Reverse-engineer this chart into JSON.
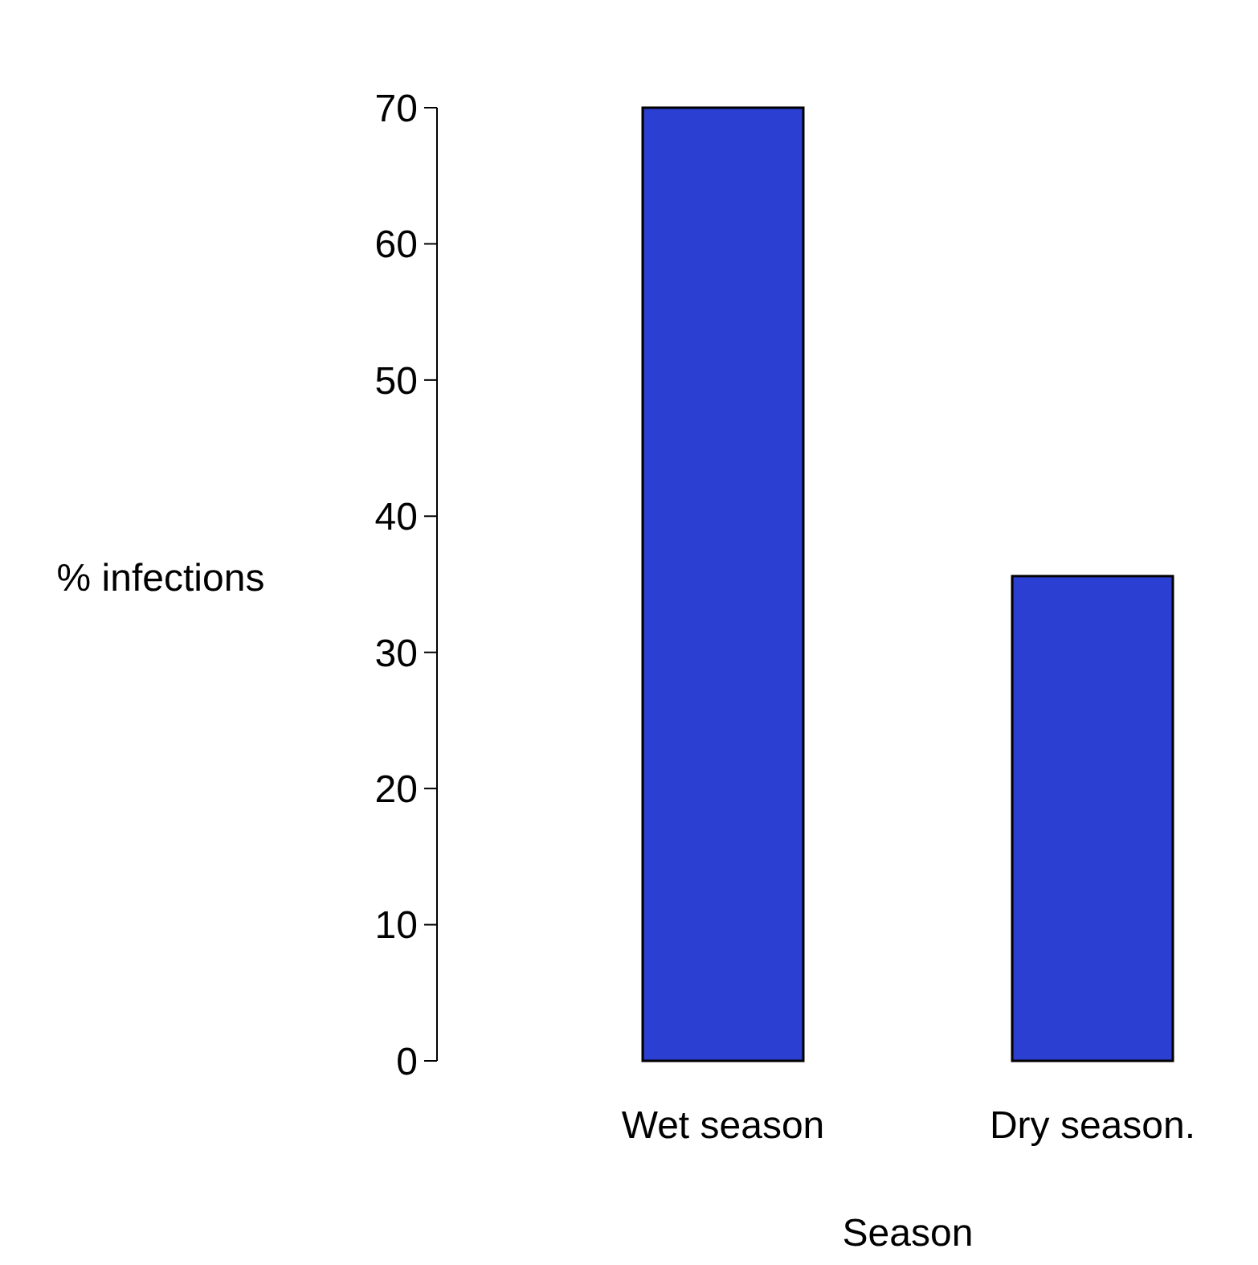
{
  "chart_data": {
    "type": "bar",
    "xlabel": "Season",
    "ylabel": "% infections",
    "categories": [
      "Wet season",
      "Dry season."
    ],
    "values": [
      70,
      35.6
    ],
    "color": "#2b3fd2",
    "ylim": [
      0,
      70
    ],
    "yticks": [
      0,
      10,
      20,
      30,
      40,
      50,
      60,
      70
    ],
    "grid": false
  }
}
